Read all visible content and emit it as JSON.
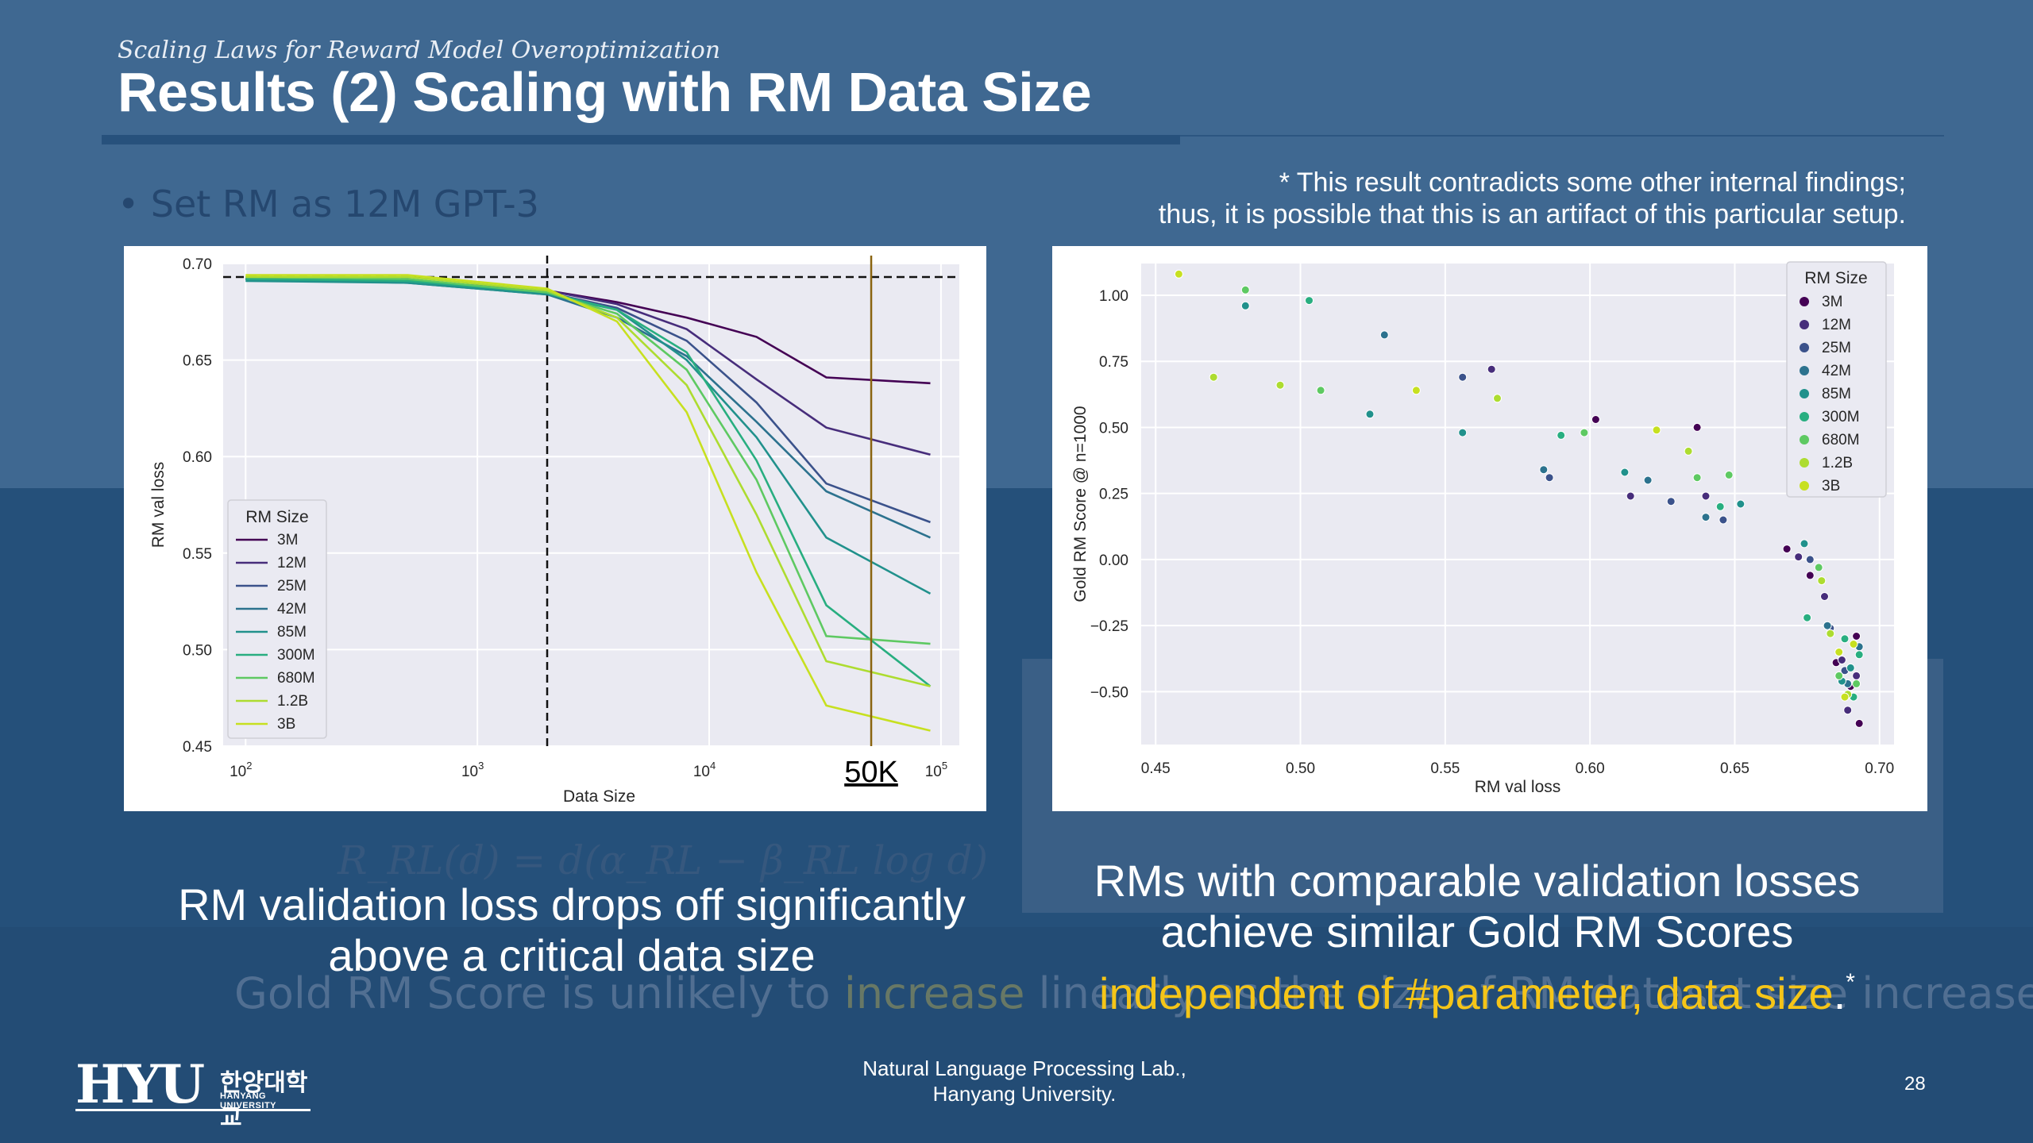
{
  "header": {
    "subtitle": "Scaling Laws for Reward Model Overoptimization",
    "title": "Results (2) Scaling with RM Data Size"
  },
  "note": {
    "line1": "* This result contradicts some other internal findings;",
    "line2": "thus, it is possible that this is an artifact of this particular setup."
  },
  "ghost": {
    "bullet": "• Set RM as 12M GPT-3",
    "formula": "R_RL(d) = d(α_RL − β_RL log d)",
    "line_a": "Gold RM Score is unlikely to ",
    "line_inc": "increase",
    "line_b": " linearly as the size of RM dataset size increases"
  },
  "captions": {
    "left_line1": "RM validation loss drops off significantly",
    "left_line2": "above a critical data size",
    "right_line1": "RMs with comparable validation losses",
    "right_line2": "achieve similar Gold RM Scores",
    "right_highlight": "independent of #parameter, data size",
    "right_tail": ".",
    "right_star": "*"
  },
  "footer": {
    "lab_line1": "Natural Language Processing Lab.,",
    "lab_line2": "Hanyang University.",
    "page": "28",
    "logo_main": "HYU",
    "logo_kr": "한양대학교",
    "logo_en": "HANYANG UNIVERSITY"
  },
  "colors": {
    "3M": "#440154",
    "12M": "#472d7b",
    "25M": "#3b528b",
    "42M": "#2c728e",
    "85M": "#21918c",
    "300M": "#28ae80",
    "680M": "#5ec962",
    "1.2B": "#addc30",
    "3B": "#c7e020",
    "highlight": "#f5c518",
    "marker_line": "#8a6410"
  },
  "chart_data": [
    {
      "type": "line",
      "xlabel": "Data Size",
      "ylabel": "RM val loss",
      "x_scale": "log",
      "xlim": [
        80,
        120000
      ],
      "ylim": [
        0.45,
        0.7
      ],
      "yticks": [
        "0.45",
        "0.50",
        "0.55",
        "0.60",
        "0.65",
        "0.70"
      ],
      "xticks": [
        {
          "base": "10",
          "exp": "2",
          "value": 100
        },
        {
          "base": "10",
          "exp": "3",
          "value": 1000
        },
        {
          "base": "10",
          "exp": "4",
          "value": 10000
        },
        {
          "base": "10",
          "exp": "5",
          "value": 100000
        }
      ],
      "grid": true,
      "legend_title": "RM Size",
      "legend_position": "center-left",
      "hline_y": 0.693,
      "vline_dashed_x": 2000,
      "vline_solid_x": 50000,
      "vline_solid_label": "50K",
      "x": [
        100,
        500,
        2000,
        4000,
        8000,
        16000,
        32000,
        90000
      ],
      "series": [
        {
          "name": "3M",
          "values": [
            0.692,
            0.691,
            0.686,
            0.68,
            0.672,
            0.662,
            0.641,
            0.638
          ]
        },
        {
          "name": "12M",
          "values": [
            0.692,
            0.691,
            0.686,
            0.679,
            0.666,
            0.64,
            0.615,
            0.601
          ]
        },
        {
          "name": "25M",
          "values": [
            0.692,
            0.691,
            0.685,
            0.677,
            0.66,
            0.628,
            0.586,
            0.566
          ]
        },
        {
          "name": "42M",
          "values": [
            0.692,
            0.69,
            0.684,
            0.672,
            0.652,
            0.618,
            0.582,
            0.558
          ]
        },
        {
          "name": "85M",
          "values": [
            0.691,
            0.69,
            0.684,
            0.676,
            0.65,
            0.61,
            0.558,
            0.529
          ]
        },
        {
          "name": "300M",
          "values": [
            0.692,
            0.691,
            0.685,
            0.676,
            0.654,
            0.598,
            0.523,
            0.481
          ]
        },
        {
          "name": "680M",
          "values": [
            0.693,
            0.692,
            0.685,
            0.674,
            0.645,
            0.588,
            0.507,
            0.503
          ]
        },
        {
          "name": "1.2B",
          "values": [
            0.693,
            0.693,
            0.686,
            0.672,
            0.637,
            0.57,
            0.494,
            0.481
          ]
        },
        {
          "name": "3B",
          "values": [
            0.694,
            0.694,
            0.687,
            0.67,
            0.623,
            0.54,
            0.471,
            0.458
          ]
        }
      ]
    },
    {
      "type": "scatter",
      "xlabel": "RM val loss",
      "ylabel": "Gold RM Score @ n=1000",
      "xlim": [
        0.445,
        0.705
      ],
      "ylim": [
        -0.7,
        1.12
      ],
      "xticks": [
        "0.45",
        "0.50",
        "0.55",
        "0.60",
        "0.65",
        "0.70"
      ],
      "yticks": [
        "−0.50",
        "−0.25",
        "0.00",
        "0.25",
        "0.50",
        "0.75",
        "1.00"
      ],
      "grid": true,
      "legend_title": "RM Size",
      "legend_position": "upper-right",
      "series": [
        {
          "name": "3M",
          "points": [
            [
              0.602,
              0.53
            ],
            [
              0.637,
              0.5
            ],
            [
              0.668,
              0.04
            ],
            [
              0.676,
              -0.06
            ],
            [
              0.685,
              -0.39
            ],
            [
              0.69,
              -0.48
            ],
            [
              0.692,
              -0.29
            ],
            [
              0.693,
              -0.62
            ]
          ]
        },
        {
          "name": "12M",
          "points": [
            [
              0.566,
              0.72
            ],
            [
              0.614,
              0.24
            ],
            [
              0.64,
              0.24
            ],
            [
              0.672,
              0.01
            ],
            [
              0.681,
              -0.14
            ],
            [
              0.687,
              -0.38
            ],
            [
              0.689,
              -0.57
            ],
            [
              0.692,
              -0.44
            ]
          ]
        },
        {
          "name": "25M",
          "points": [
            [
              0.556,
              0.69
            ],
            [
              0.586,
              0.31
            ],
            [
              0.628,
              0.22
            ],
            [
              0.646,
              0.15
            ],
            [
              0.676,
              0.0
            ],
            [
              0.683,
              -0.26
            ],
            [
              0.688,
              -0.42
            ]
          ]
        },
        {
          "name": "42M",
          "points": [
            [
              0.529,
              0.85
            ],
            [
              0.584,
              0.34
            ],
            [
              0.62,
              0.3
            ],
            [
              0.64,
              0.16
            ],
            [
              0.682,
              -0.25
            ],
            [
              0.689,
              -0.47
            ],
            [
              0.693,
              -0.33
            ]
          ]
        },
        {
          "name": "85M",
          "points": [
            [
              0.481,
              0.96
            ],
            [
              0.524,
              0.55
            ],
            [
              0.556,
              0.48
            ],
            [
              0.612,
              0.33
            ],
            [
              0.652,
              0.21
            ],
            [
              0.674,
              0.06
            ],
            [
              0.687,
              -0.46
            ],
            [
              0.69,
              -0.41
            ]
          ]
        },
        {
          "name": "300M",
          "points": [
            [
              0.503,
              0.98
            ],
            [
              0.59,
              0.47
            ],
            [
              0.645,
              0.2
            ],
            [
              0.675,
              -0.22
            ],
            [
              0.688,
              -0.3
            ],
            [
              0.691,
              -0.52
            ],
            [
              0.693,
              -0.36
            ]
          ]
        },
        {
          "name": "680M",
          "points": [
            [
              0.481,
              1.02
            ],
            [
              0.507,
              0.64
            ],
            [
              0.598,
              0.48
            ],
            [
              0.637,
              0.31
            ],
            [
              0.648,
              0.32
            ],
            [
              0.679,
              -0.03
            ],
            [
              0.686,
              -0.44
            ],
            [
              0.692,
              -0.47
            ]
          ]
        },
        {
          "name": "1.2B",
          "points": [
            [
              0.47,
              0.69
            ],
            [
              0.493,
              0.66
            ],
            [
              0.568,
              0.61
            ],
            [
              0.634,
              0.41
            ],
            [
              0.68,
              -0.08
            ],
            [
              0.683,
              -0.28
            ],
            [
              0.689,
              -0.51
            ]
          ]
        },
        {
          "name": "3B",
          "points": [
            [
              0.458,
              1.08
            ],
            [
              0.54,
              0.64
            ],
            [
              0.623,
              0.49
            ],
            [
              0.686,
              -0.35
            ],
            [
              0.688,
              -0.52
            ],
            [
              0.691,
              -0.32
            ]
          ]
        }
      ]
    }
  ]
}
